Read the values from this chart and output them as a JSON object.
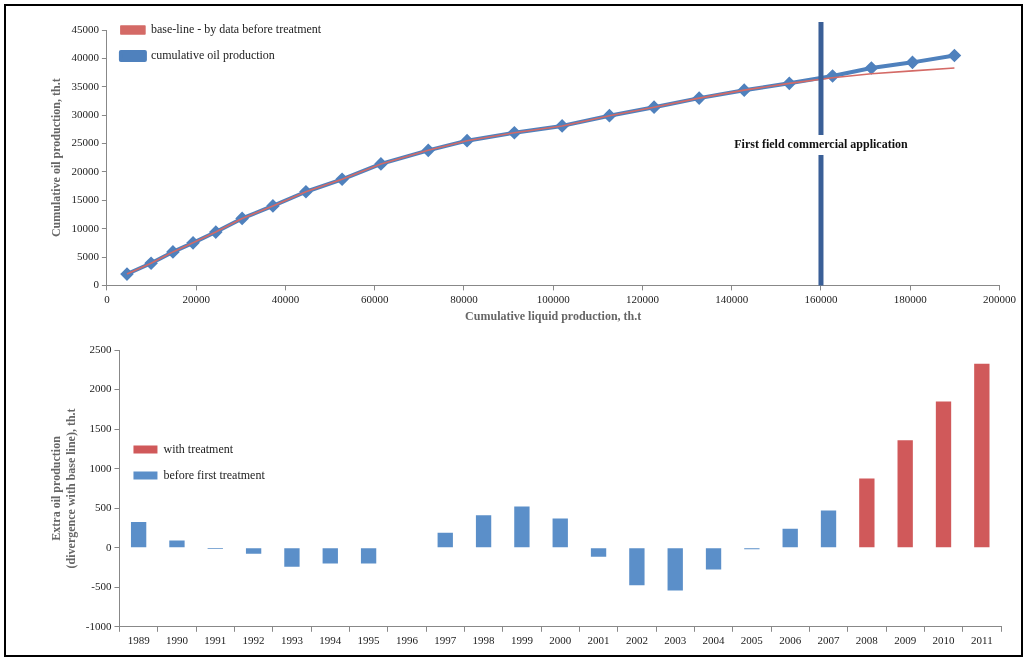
{
  "chart_data": [
    {
      "type": "line",
      "xlabel": "Cumulative liquid production, th.t",
      "ylabel": "Cumulative oil production, th.t",
      "series": [
        {
          "name": "cumulative oil production",
          "color": "#4f81bd",
          "marker": "diamond",
          "x": [
            4500,
            9900,
            14800,
            19300,
            24400,
            30300,
            37200,
            44600,
            52700,
            61400,
            72000,
            80700,
            91300,
            102000,
            112600,
            122600,
            132700,
            142800,
            152900,
            162600,
            171300,
            180500,
            189900
          ],
          "values": [
            2000,
            3900,
            5900,
            7500,
            9400,
            11800,
            14000,
            16500,
            18700,
            21400,
            23800,
            25500,
            26900,
            28100,
            29900,
            31400,
            33000,
            34400,
            35600,
            36900,
            38300,
            39300,
            40500
          ]
        },
        {
          "name": "base-line - by data before treatment",
          "color": "#d46a66",
          "marker": "none",
          "x": [
            4500,
            9900,
            14800,
            19300,
            24400,
            30300,
            37200,
            44600,
            52700,
            61400,
            72000,
            80700,
            91300,
            102000,
            112600,
            122600,
            132700,
            142800,
            152900,
            162600,
            171300,
            180500,
            189900
          ],
          "values": [
            2000,
            3900,
            5900,
            7500,
            9400,
            11800,
            14000,
            16500,
            18700,
            21400,
            23800,
            25500,
            26900,
            28100,
            29900,
            31400,
            33000,
            34400,
            35600,
            36600,
            37300,
            37800,
            38300
          ]
        }
      ],
      "xlim": [
        0,
        200000
      ],
      "xticks": [
        0,
        20000,
        40000,
        60000,
        80000,
        100000,
        120000,
        140000,
        160000,
        180000,
        200000
      ],
      "ylim": [
        0,
        45000
      ],
      "yticks": [
        0,
        5000,
        10000,
        15000,
        20000,
        25000,
        30000,
        35000,
        40000,
        45000
      ],
      "ref_lines": [
        {
          "axis": "x",
          "value": 160000,
          "label": "First field commercial application",
          "color": "#3a5f97"
        }
      ],
      "grid": false,
      "legend": "top left"
    },
    {
      "type": "bar",
      "ylabel": "Extra oil production\n(divergence with base line), th.t",
      "categories": [
        "1989",
        "1990",
        "1991",
        "1992",
        "1993",
        "1994",
        "1995",
        "1996",
        "1997",
        "1998",
        "1999",
        "2000",
        "2001",
        "2002",
        "2003",
        "2004",
        "2005",
        "2006",
        "2007",
        "2008",
        "2009",
        "2010",
        "2011"
      ],
      "series": [
        {
          "name": "before first treatment",
          "color": "#5b8fc9",
          "values": [
            325,
            90,
            -15,
            -75,
            -240,
            -200,
            -200,
            0,
            190,
            410,
            520,
            370,
            -115,
            -475,
            -540,
            -275,
            -20,
            240,
            470,
            null,
            null,
            null,
            null
          ]
        },
        {
          "name": "with treatment",
          "color": "#d0595a",
          "values": [
            null,
            null,
            null,
            null,
            null,
            null,
            null,
            null,
            null,
            null,
            null,
            null,
            null,
            null,
            null,
            null,
            null,
            null,
            null,
            875,
            1360,
            1850,
            2325
          ]
        }
      ],
      "ylim": [
        -1000,
        2500
      ],
      "yticks": [
        -1000,
        -500,
        0,
        500,
        1000,
        1500,
        2000,
        2500
      ],
      "grid": false,
      "legend": "top"
    }
  ]
}
